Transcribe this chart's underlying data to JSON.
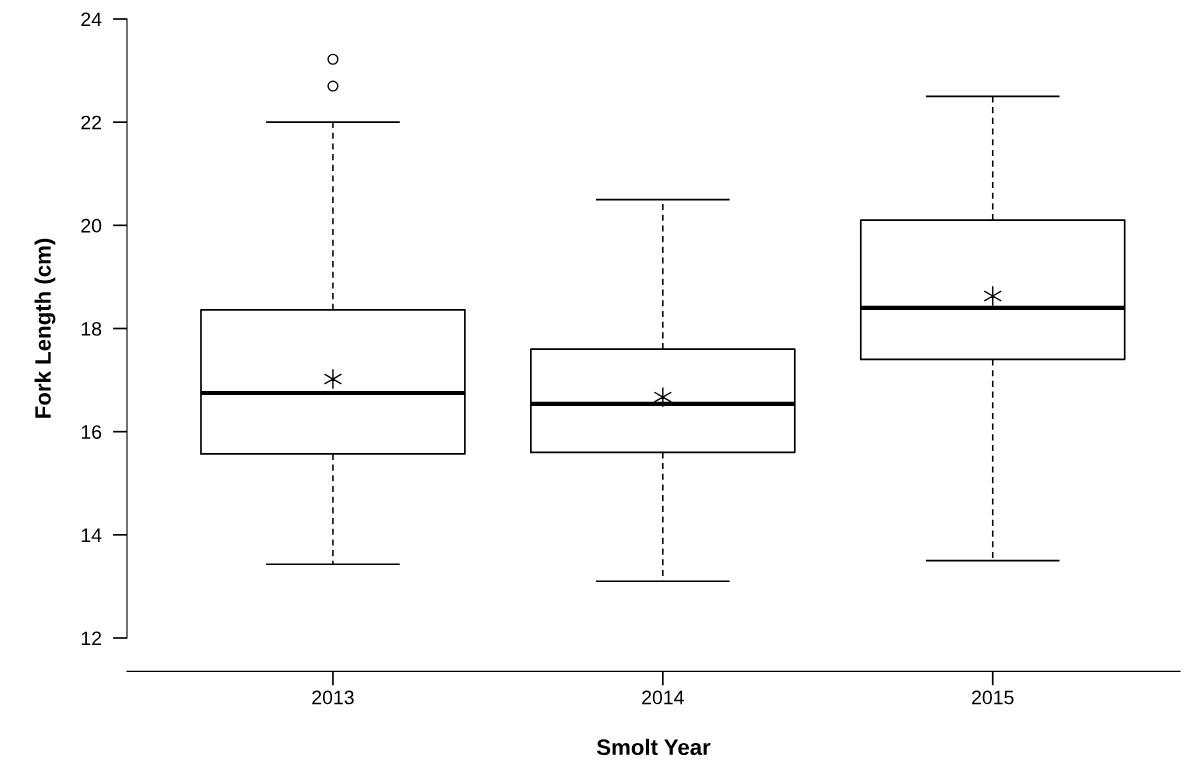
{
  "chart_data": {
    "type": "box",
    "xlabel": "Smolt Year",
    "ylabel": "Fork Length (cm)",
    "categories": [
      "2013",
      "2014",
      "2015"
    ],
    "boxes": [
      {
        "low": 13.43,
        "q1": 15.57,
        "median": 16.75,
        "q3": 18.36,
        "high": 22.0,
        "mean": 17.02,
        "outliers": [
          22.7,
          23.22
        ]
      },
      {
        "low": 13.1,
        "q1": 15.6,
        "median": 16.54,
        "q3": 17.6,
        "high": 20.5,
        "mean": 16.67
      },
      {
        "low": 13.5,
        "q1": 17.4,
        "median": 18.4,
        "q3": 20.1,
        "high": 22.5,
        "mean": 18.63
      }
    ],
    "ylim": [
      12,
      24
    ],
    "yticks": [
      12,
      14,
      16,
      18,
      20,
      22,
      24
    ],
    "grid": false
  }
}
